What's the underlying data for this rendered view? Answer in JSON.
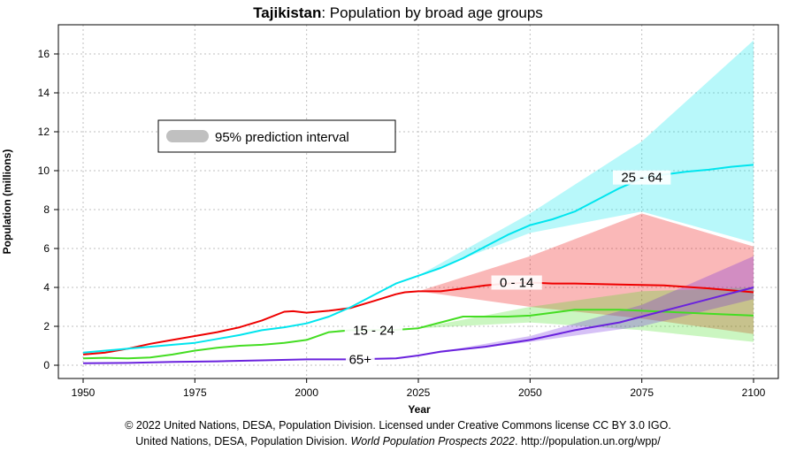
{
  "title": {
    "country": "Tajikistan",
    "rest": ": Population by broad age groups"
  },
  "credit": {
    "line1": "© 2022 United Nations, DESA, Population Division. Licensed under Creative Commons license CC BY 3.0 IGO.",
    "line2_pre": "United Nations, DESA, Population Division. ",
    "line2_italic": "World Population Prospects 2022",
    "line2_post": ". http://population.un.org/wpp/"
  },
  "chart_data": {
    "type": "line",
    "xlabel": "Year",
    "ylabel": "Population (millions)",
    "xlim": [
      1950,
      2100
    ],
    "ylim": [
      0,
      17.5
    ],
    "xticks": [
      1950,
      1975,
      2000,
      2025,
      2050,
      2075,
      2100
    ],
    "yticks": [
      0,
      2,
      4,
      6,
      8,
      10,
      12,
      14,
      16
    ],
    "grid": true,
    "legend": {
      "label": "95% prediction interval",
      "placement": "top-left"
    },
    "series": [
      {
        "name": "0 - 14",
        "color": "#ee0000",
        "x": [
          1950,
          1955,
          1960,
          1965,
          1970,
          1975,
          1980,
          1985,
          1990,
          1995,
          1997,
          2000,
          2005,
          2010,
          2015,
          2020,
          2022,
          2025,
          2030,
          2035,
          2040,
          2045,
          2050,
          2055,
          2060,
          2070,
          2080,
          2090,
          2100
        ],
        "y": [
          0.55,
          0.65,
          0.85,
          1.1,
          1.3,
          1.5,
          1.7,
          1.95,
          2.3,
          2.75,
          2.78,
          2.7,
          2.8,
          2.95,
          3.3,
          3.65,
          3.75,
          3.8,
          3.8,
          3.95,
          4.1,
          4.2,
          4.25,
          4.2,
          4.2,
          4.15,
          4.1,
          3.95,
          3.75
        ],
        "interval": {
          "x": [
            2025,
            2050,
            2075,
            2100
          ],
          "lower": [
            3.8,
            3.0,
            2.4,
            1.6
          ],
          "upper": [
            3.8,
            5.6,
            7.8,
            6.1
          ]
        }
      },
      {
        "name": "15 - 24",
        "color": "#44dd22",
        "x": [
          1950,
          1955,
          1960,
          1965,
          1970,
          1975,
          1980,
          1985,
          1990,
          1995,
          2000,
          2005,
          2010,
          2015,
          2020,
          2025,
          2030,
          2035,
          2040,
          2045,
          2050,
          2055,
          2060,
          2070,
          2080,
          2090,
          2100
        ],
        "y": [
          0.35,
          0.38,
          0.35,
          0.4,
          0.55,
          0.75,
          0.9,
          1.0,
          1.05,
          1.15,
          1.3,
          1.7,
          1.8,
          1.8,
          1.82,
          1.9,
          2.2,
          2.5,
          2.5,
          2.5,
          2.55,
          2.7,
          2.85,
          2.85,
          2.75,
          2.65,
          2.55
        ],
        "interval": {
          "x": [
            2025,
            2050,
            2075,
            2100
          ],
          "lower": [
            1.9,
            2.2,
            1.8,
            1.2
          ],
          "upper": [
            1.9,
            3.0,
            3.8,
            4.0
          ]
        }
      },
      {
        "name": "25 - 64",
        "color": "#00e5ee",
        "x": [
          1950,
          1955,
          1960,
          1965,
          1970,
          1975,
          1980,
          1985,
          1990,
          1995,
          2000,
          2005,
          2010,
          2015,
          2020,
          2025,
          2030,
          2035,
          2040,
          2045,
          2050,
          2055,
          2060,
          2065,
          2070,
          2075,
          2080,
          2085,
          2090,
          2095,
          2100
        ],
        "y": [
          0.65,
          0.75,
          0.85,
          0.95,
          1.05,
          1.15,
          1.35,
          1.55,
          1.8,
          1.95,
          2.15,
          2.5,
          3.0,
          3.6,
          4.2,
          4.6,
          5.0,
          5.5,
          6.1,
          6.7,
          7.2,
          7.5,
          7.9,
          8.5,
          9.1,
          9.6,
          9.8,
          9.95,
          10.05,
          10.2,
          10.3
        ],
        "interval": {
          "x": [
            2025,
            2050,
            2075,
            2100
          ],
          "lower": [
            4.6,
            6.8,
            7.9,
            6.3
          ],
          "upper": [
            4.6,
            7.8,
            11.5,
            16.7
          ]
        }
      },
      {
        "name": "65+",
        "color": "#6a22dd",
        "x": [
          1950,
          1960,
          1970,
          1980,
          1990,
          2000,
          2010,
          2020,
          2025,
          2030,
          2040,
          2050,
          2060,
          2070,
          2080,
          2090,
          2100
        ],
        "y": [
          0.1,
          0.12,
          0.17,
          0.2,
          0.25,
          0.3,
          0.3,
          0.35,
          0.5,
          0.7,
          0.95,
          1.3,
          1.8,
          2.2,
          2.8,
          3.4,
          4.0
        ],
        "interval": {
          "x": [
            2025,
            2050,
            2075,
            2100
          ],
          "lower": [
            0.5,
            1.2,
            2.0,
            3.4
          ],
          "upper": [
            0.5,
            1.5,
            3.1,
            5.6
          ]
        }
      }
    ]
  }
}
